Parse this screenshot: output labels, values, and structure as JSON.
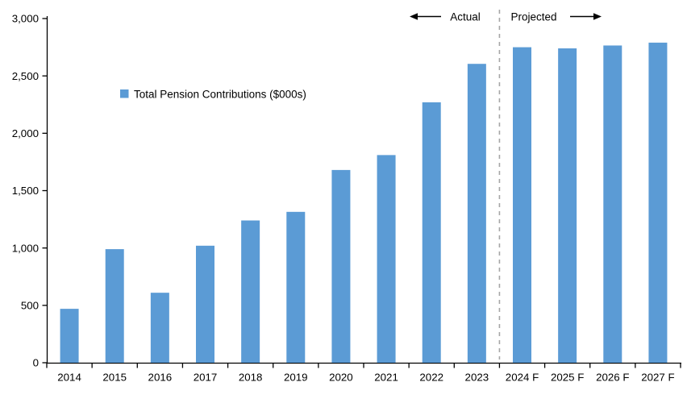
{
  "chart_data": {
    "type": "bar",
    "title": "",
    "xlabel": "",
    "ylabel": "",
    "legend": {
      "label": "Total Pension Contributions ($000s)",
      "marker_color": "#5B9BD5",
      "position": "inside-upper-left"
    },
    "categories": [
      "2014",
      "2015",
      "2016",
      "2017",
      "2018",
      "2019",
      "2020",
      "2021",
      "2022",
      "2023",
      "2024 F",
      "2025 F",
      "2026 F",
      "2027 F"
    ],
    "values": [
      470,
      990,
      610,
      1020,
      1240,
      1315,
      1680,
      1810,
      2270,
      2605,
      2750,
      2740,
      2765,
      2790
    ],
    "ylim": [
      0,
      3000
    ],
    "ytick_interval": 500,
    "ytick_labels": [
      "0",
      "500",
      "1,000",
      "1,500",
      "2,000",
      "2,500",
      "3,000"
    ],
    "grid": false,
    "legend_position": "upper-left-inside",
    "bar_color": "#5B9BD5",
    "axis_color": "#000000",
    "divider": {
      "after_category": "2023",
      "style": "dashed",
      "color": "#A6A6A6"
    },
    "annotations": [
      {
        "text": "Actual",
        "side": "left-of-divider",
        "arrow": "left"
      },
      {
        "text": "Projected",
        "side": "right-of-divider",
        "arrow": "right"
      }
    ]
  }
}
